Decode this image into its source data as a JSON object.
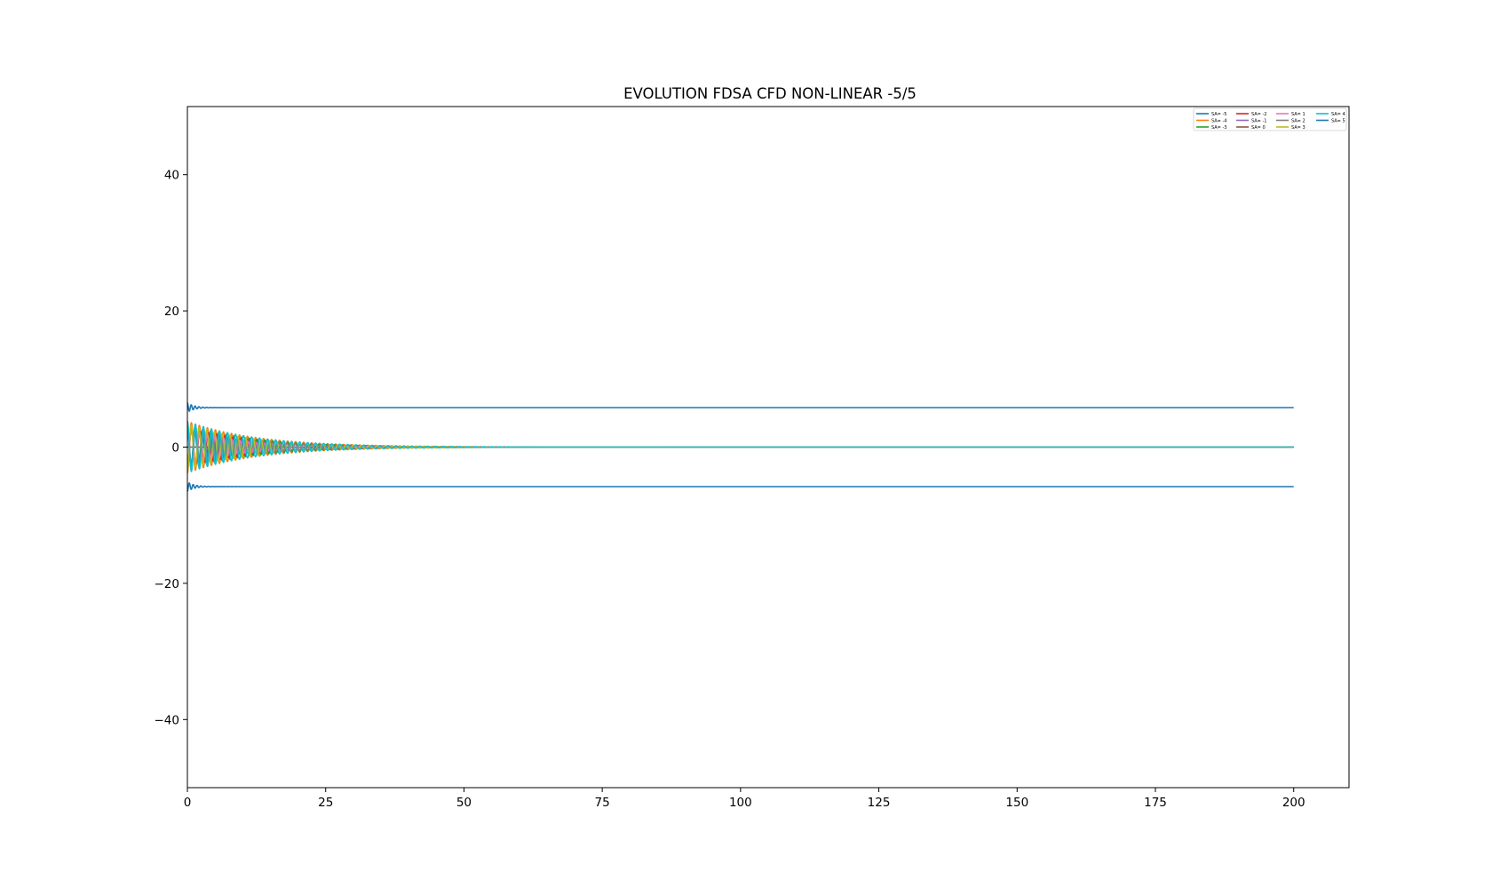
{
  "chart_data": {
    "type": "line",
    "title": "EVOLUTION FDSA CFD NON-LINEAR -5/5",
    "xlabel": "",
    "ylabel": "",
    "xlim": [
      0,
      210
    ],
    "ylim": [
      -50,
      50
    ],
    "xticks": [
      0,
      25,
      50,
      75,
      100,
      125,
      150,
      175,
      200
    ],
    "yticks": [
      -40,
      -20,
      0,
      20,
      40
    ],
    "ytick_labels": [
      "−40",
      "−20",
      "0",
      "20",
      "40"
    ],
    "grid": false,
    "legend_position": "upper right",
    "legend_columns": 4,
    "series": [
      {
        "name": "SA= -5",
        "color": "#1f77b4",
        "start": 3.0,
        "final": 0.0,
        "decay": 0.085,
        "period": 1.35
      },
      {
        "name": "SA= -4",
        "color": "#ff7f0e",
        "start": -3.8,
        "final": 0.0,
        "decay": 0.08,
        "period": 1.45
      },
      {
        "name": "SA= -3",
        "color": "#2ca02c",
        "start": 3.4,
        "final": 0.0,
        "decay": 0.085,
        "period": 1.4
      },
      {
        "name": "SA= -2",
        "color": "#d62728",
        "start": -3.0,
        "final": 0.0,
        "decay": 0.09,
        "period": 1.5
      },
      {
        "name": "SA= -1",
        "color": "#9467bd",
        "start": 2.6,
        "final": 0.0,
        "decay": 0.1,
        "period": 1.45
      },
      {
        "name": "SA= 0",
        "color": "#8c564b",
        "start": 0.0,
        "final": 0.0,
        "decay": 0.1,
        "period": 1.5
      },
      {
        "name": "SA= 1",
        "color": "#e377c2",
        "start": -2.6,
        "final": 0.0,
        "decay": 0.1,
        "period": 1.45
      },
      {
        "name": "SA= 2",
        "color": "#7f7f7f",
        "start": 3.0,
        "final": 0.0,
        "decay": 0.09,
        "period": 1.5
      },
      {
        "name": "SA= 3",
        "color": "#bcbd22",
        "start": -3.4,
        "final": 0.0,
        "decay": 0.085,
        "period": 1.4
      },
      {
        "name": "SA= 4",
        "color": "#17becf",
        "start": 3.8,
        "final": 0.0,
        "decay": 0.08,
        "period": 1.45
      },
      {
        "name": "SA= 5",
        "color": "#1f77b4",
        "start": 6.5,
        "final": 5.8,
        "decay": 0.8,
        "period": 0.7
      },
      {
        "name": "",
        "color": "#1f77b4",
        "start": -6.5,
        "final": -5.8,
        "decay": 0.8,
        "period": 0.7
      }
    ],
    "x_end": 200
  }
}
